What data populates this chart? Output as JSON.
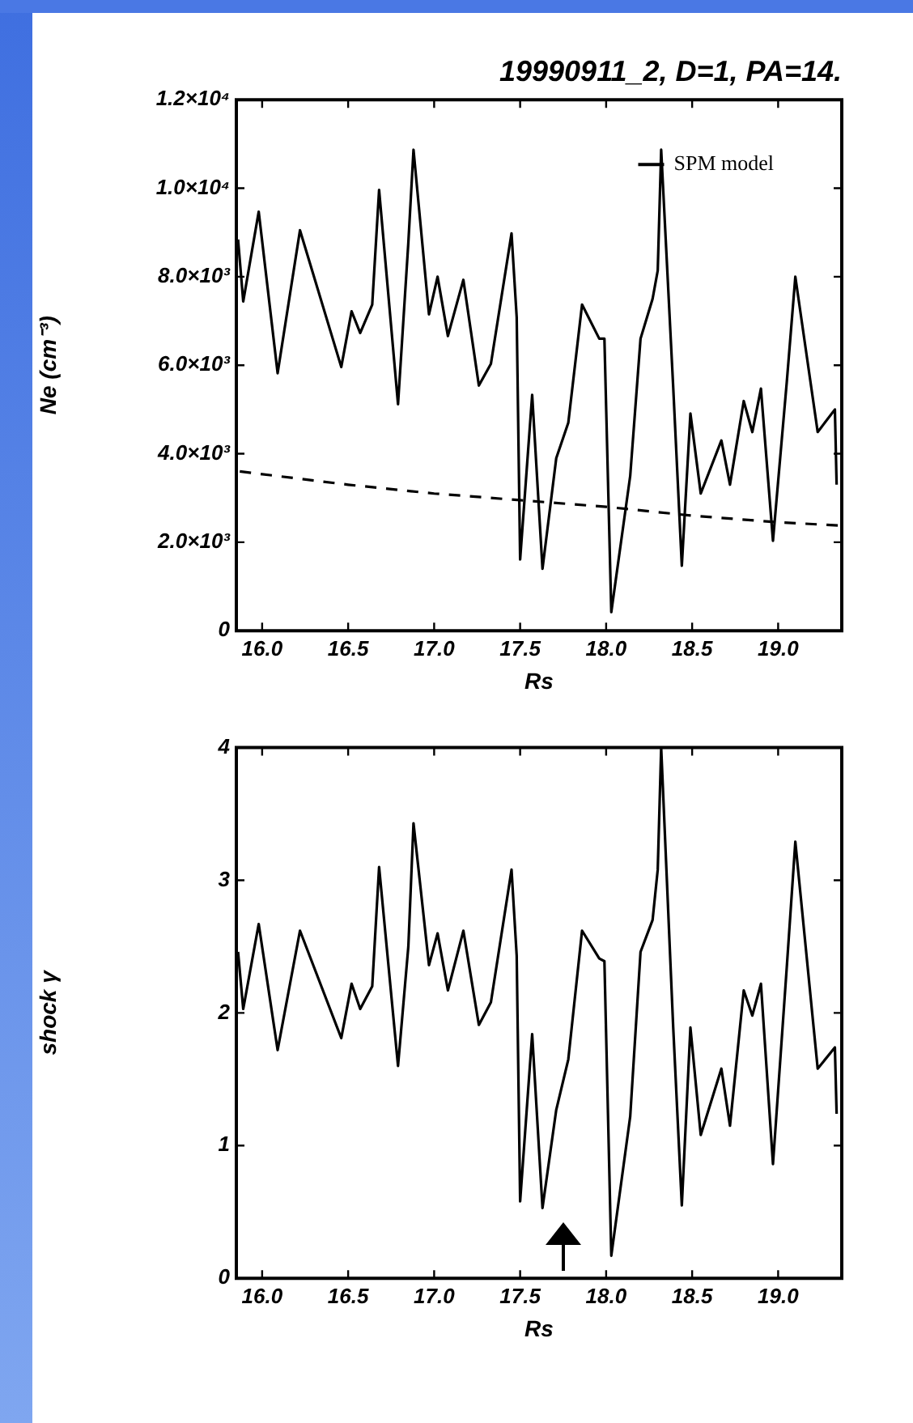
{
  "chart_data": [
    {
      "type": "line",
      "title": "19990911_2, D=1, PA=14.",
      "xlabel": "Rs",
      "ylabel": "Ne (cm⁻³)",
      "series": [
        {
          "color": "#000000",
          "x": [
            15.86,
            15.89,
            15.98,
            16.09,
            16.22,
            16.46,
            16.52,
            16.57,
            16.64,
            16.68,
            16.79,
            16.85,
            16.88,
            16.97,
            17.02,
            17.08,
            17.17,
            17.26,
            17.33,
            17.45,
            17.48,
            17.5,
            17.57,
            17.63,
            17.71,
            17.78,
            17.86,
            17.96,
            17.99,
            18.03,
            18.14,
            18.2,
            18.27,
            18.3,
            18.32,
            18.39,
            18.44,
            18.49,
            18.55,
            18.67,
            18.72,
            18.8,
            18.85,
            18.9,
            18.97,
            19.05,
            19.1,
            19.23,
            19.33,
            19.34
          ],
          "values": [
            8840,
            7440,
            9470,
            5820,
            9050,
            5960,
            7220,
            6730,
            7370,
            9960,
            5120,
            8770,
            10870,
            7150,
            8000,
            6660,
            7930,
            5540,
            6030,
            8980,
            7080,
            1610,
            5330,
            1400,
            3900,
            4700,
            7370,
            6600,
            6600,
            420,
            3500,
            6600,
            7500,
            8140,
            10870,
            5500,
            1470,
            4910,
            3100,
            4300,
            3300,
            5190,
            4490,
            5470,
            2030,
            5610,
            8000,
            4490,
            5000,
            3300
          ]
        },
        {
          "name": "SPM model",
          "color": "#000000",
          "line_style": "dashed",
          "x": [
            15.87,
            16.5,
            17.0,
            17.5,
            18.0,
            18.5,
            19.0,
            19.35
          ],
          "values": [
            3600,
            3300,
            3100,
            2950,
            2800,
            2600,
            2450,
            2380
          ]
        }
      ],
      "xlim": [
        15.85,
        19.37
      ],
      "xticks": [
        {
          "value": 16,
          "label": "16.0"
        },
        {
          "value": 16.5,
          "label": "16.5"
        },
        {
          "value": 17,
          "label": "17.0"
        },
        {
          "value": 17.5,
          "label": "17.5"
        },
        {
          "value": 18,
          "label": "18.0"
        },
        {
          "value": 18.5,
          "label": "18.5"
        },
        {
          "value": 19,
          "label": "19.0"
        }
      ],
      "ylim": [
        0,
        12000
      ],
      "yticks": [
        0,
        {
          "value": 2000,
          "label": "2.0×10³"
        },
        {
          "value": 4000,
          "label": "4.0×10³"
        },
        {
          "value": 6000,
          "label": "6.0×10³"
        },
        {
          "value": 8000,
          "label": "8.0×10³"
        },
        {
          "value": 10000,
          "label": "1.0×10⁴"
        },
        {
          "value": 12000,
          "label": "1.2×10⁴"
        }
      ],
      "grid": false,
      "legend": "top right",
      "marker": "none"
    },
    {
      "type": "line",
      "xlabel": "Rs",
      "ylabel": "shock γ",
      "series": [
        {
          "color": "#000000",
          "x": [
            15.86,
            15.89,
            15.98,
            16.09,
            16.22,
            16.46,
            16.52,
            16.57,
            16.64,
            16.68,
            16.79,
            16.85,
            16.88,
            16.97,
            17.02,
            17.08,
            17.17,
            17.26,
            17.33,
            17.45,
            17.48,
            17.5,
            17.57,
            17.63,
            17.71,
            17.78,
            17.86,
            17.96,
            17.99,
            18.03,
            18.14,
            18.2,
            18.27,
            18.3,
            18.32,
            18.39,
            18.44,
            18.49,
            18.55,
            18.67,
            18.72,
            18.8,
            18.85,
            18.9,
            18.97,
            19.05,
            19.1,
            19.23,
            19.33,
            19.34
          ],
          "values": [
            2.46,
            2.03,
            2.67,
            1.72,
            2.62,
            1.81,
            2.22,
            2.03,
            2.2,
            3.1,
            1.6,
            2.5,
            3.43,
            2.36,
            2.6,
            2.17,
            2.62,
            1.91,
            2.08,
            3.08,
            2.43,
            0.58,
            1.84,
            0.53,
            1.27,
            1.65,
            2.62,
            2.41,
            2.39,
            0.17,
            1.22,
            2.46,
            2.7,
            3.08,
            4.0,
            1.89,
            0.55,
            1.89,
            1.08,
            1.58,
            1.15,
            2.17,
            1.98,
            2.22,
            0.86,
            2.34,
            3.29,
            1.58,
            1.74,
            1.24
          ]
        }
      ],
      "xlim": [
        15.85,
        19.37
      ],
      "xticks": [
        {
          "value": 16,
          "label": "16.0"
        },
        {
          "value": 16.5,
          "label": "16.5"
        },
        {
          "value": 17,
          "label": "17.0"
        },
        {
          "value": 17.5,
          "label": "17.5"
        },
        {
          "value": 18,
          "label": "18.0"
        },
        {
          "value": 18.5,
          "label": "18.5"
        },
        {
          "value": 19,
          "label": "19.0"
        }
      ],
      "ylim": [
        0,
        4
      ],
      "yticks": [
        0,
        1,
        2,
        3,
        4
      ],
      "grid": false,
      "marker": "none"
    }
  ]
}
